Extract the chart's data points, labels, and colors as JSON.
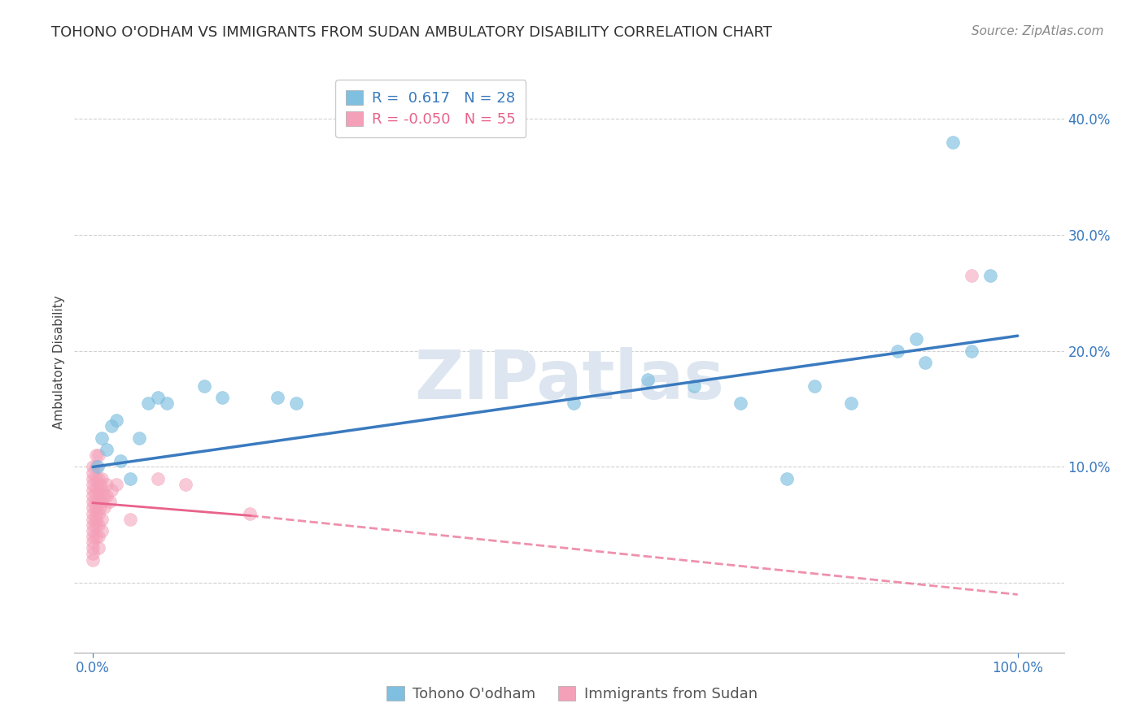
{
  "title": "TOHONO O'ODHAM VS IMMIGRANTS FROM SUDAN AMBULATORY DISABILITY CORRELATION CHART",
  "source": "Source: ZipAtlas.com",
  "ylabel": "Ambulatory Disability",
  "xlabel": "",
  "blue_label": "Tohono O'odham",
  "pink_label": "Immigrants from Sudan",
  "blue_R": 0.617,
  "blue_N": 28,
  "pink_R": -0.05,
  "pink_N": 55,
  "xlim": [
    -0.02,
    1.05
  ],
  "ylim": [
    -0.06,
    0.44
  ],
  "yticks": [
    0.0,
    0.1,
    0.2,
    0.3,
    0.4
  ],
  "xticks": [
    0.0,
    1.0
  ],
  "xtick_labels": [
    "0.0%",
    "100.0%"
  ],
  "ytick_labels": [
    "",
    "10.0%",
    "20.0%",
    "30.0%",
    "40.0%"
  ],
  "blue_color": "#7fbfdf",
  "pink_color": "#f4a0b8",
  "blue_line_color": "#3a7abf",
  "pink_line_color": "#e8628a",
  "background_color": "#ffffff",
  "watermark_text": "ZIPatlas",
  "watermark_color": "#dde6f0",
  "blue_scatter_x": [
    0.005,
    0.01,
    0.015,
    0.02,
    0.025,
    0.03,
    0.04,
    0.05,
    0.06,
    0.07,
    0.08,
    0.12,
    0.14,
    0.2,
    0.22,
    0.52,
    0.6,
    0.65,
    0.7,
    0.75,
    0.78,
    0.82,
    0.87,
    0.89,
    0.9,
    0.93,
    0.95,
    0.97
  ],
  "blue_scatter_y": [
    0.1,
    0.125,
    0.115,
    0.135,
    0.14,
    0.105,
    0.09,
    0.125,
    0.155,
    0.16,
    0.155,
    0.17,
    0.16,
    0.16,
    0.155,
    0.155,
    0.175,
    0.17,
    0.155,
    0.09,
    0.17,
    0.155,
    0.2,
    0.21,
    0.19,
    0.38,
    0.2,
    0.265
  ],
  "pink_scatter_x": [
    0.0,
    0.0,
    0.0,
    0.0,
    0.0,
    0.0,
    0.0,
    0.0,
    0.0,
    0.0,
    0.0,
    0.0,
    0.0,
    0.0,
    0.0,
    0.0,
    0.0,
    0.003,
    0.003,
    0.003,
    0.003,
    0.003,
    0.003,
    0.003,
    0.003,
    0.003,
    0.003,
    0.006,
    0.006,
    0.006,
    0.006,
    0.006,
    0.006,
    0.006,
    0.006,
    0.008,
    0.008,
    0.008,
    0.01,
    0.01,
    0.01,
    0.01,
    0.01,
    0.012,
    0.012,
    0.015,
    0.015,
    0.018,
    0.02,
    0.025,
    0.04,
    0.07,
    0.1,
    0.17,
    0.95
  ],
  "pink_scatter_y": [
    0.02,
    0.025,
    0.03,
    0.035,
    0.04,
    0.045,
    0.05,
    0.055,
    0.06,
    0.065,
    0.07,
    0.075,
    0.08,
    0.085,
    0.09,
    0.095,
    0.1,
    0.04,
    0.05,
    0.06,
    0.07,
    0.08,
    0.09,
    0.1,
    0.11,
    0.055,
    0.065,
    0.06,
    0.07,
    0.08,
    0.09,
    0.05,
    0.04,
    0.03,
    0.11,
    0.065,
    0.075,
    0.085,
    0.07,
    0.08,
    0.09,
    0.055,
    0.045,
    0.075,
    0.065,
    0.075,
    0.085,
    0.07,
    0.08,
    0.085,
    0.055,
    0.09,
    0.085,
    0.06,
    0.265
  ],
  "blue_line_x0": 0.0,
  "blue_line_y0": 0.1,
  "blue_line_x1": 1.0,
  "blue_line_y1": 0.213,
  "pink_line_solid_x0": 0.0,
  "pink_line_solid_y0": 0.069,
  "pink_line_solid_x1": 0.17,
  "pink_line_solid_y1": 0.058,
  "pink_line_dash_x0": 0.17,
  "pink_line_dash_y0": 0.058,
  "pink_line_dash_x1": 1.0,
  "pink_line_dash_y1": -0.01,
  "title_fontsize": 13,
  "source_fontsize": 11,
  "axis_label_fontsize": 11,
  "tick_fontsize": 12,
  "legend_fontsize": 13,
  "watermark_fontsize": 60
}
